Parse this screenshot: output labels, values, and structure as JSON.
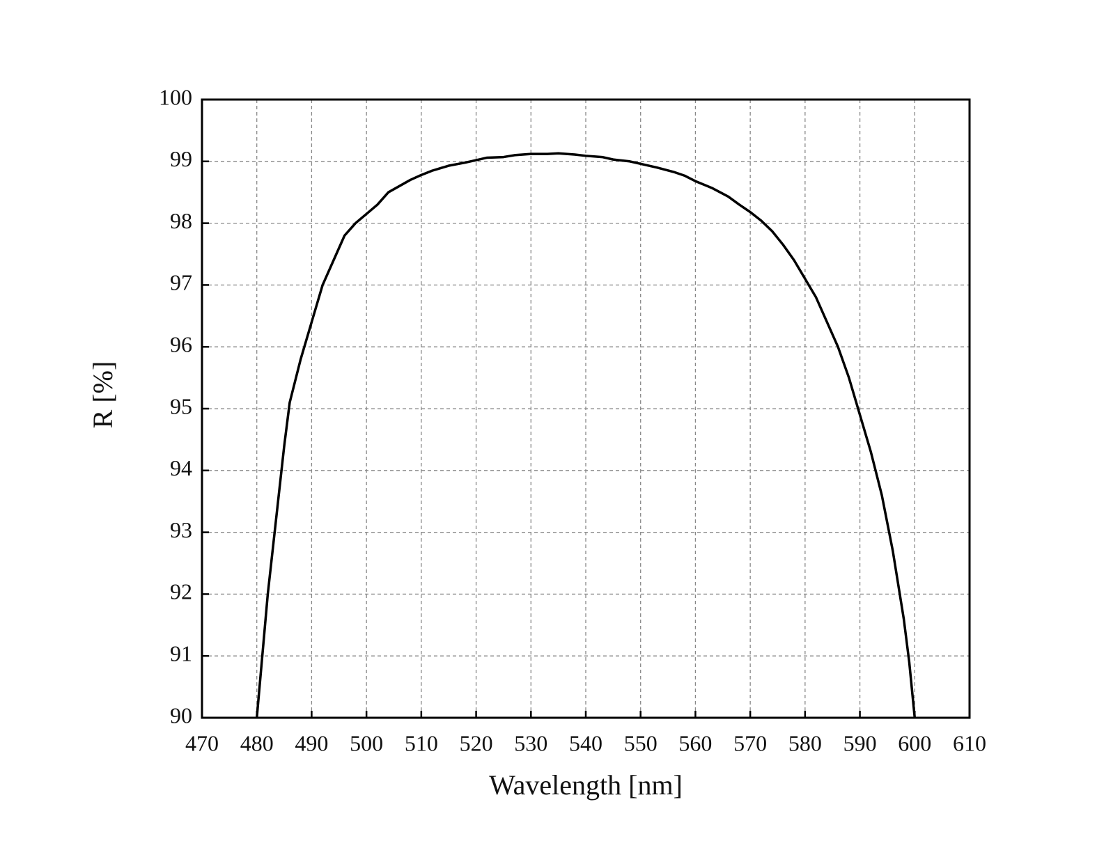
{
  "chart_data": {
    "type": "line",
    "x_label": "Wavelength [nm]",
    "y_label": "R [%]",
    "xlim": [
      470,
      610
    ],
    "xticks": [
      470,
      480,
      490,
      500,
      510,
      520,
      530,
      540,
      550,
      560,
      570,
      580,
      590,
      600,
      610
    ],
    "ylim": [
      90,
      100
    ],
    "yticks": [
      90,
      91,
      92,
      93,
      94,
      95,
      96,
      97,
      98,
      99,
      100
    ],
    "grid": true,
    "series": [
      {
        "color": "#000000",
        "x": [
          480,
          481,
          482,
          483,
          484,
          485,
          486,
          488,
          490,
          492,
          494,
          496,
          498,
          500,
          502,
          504,
          506,
          508,
          510,
          512,
          515,
          518,
          520,
          522,
          525,
          527,
          530,
          533,
          535,
          538,
          540,
          543,
          545,
          548,
          550,
          553,
          556,
          558,
          560,
          563,
          566,
          568,
          570,
          572,
          574,
          576,
          578,
          580,
          582,
          584,
          586,
          588,
          590,
          592,
          594,
          596,
          598,
          599,
          600
        ],
        "values": [
          90,
          91,
          92,
          92.8,
          93.6,
          94.4,
          95.1,
          95.8,
          96.4,
          97.0,
          97.4,
          97.8,
          98.0,
          98.15,
          98.3,
          98.5,
          98.6,
          98.7,
          98.78,
          98.85,
          98.93,
          98.98,
          99.02,
          99.06,
          99.07,
          99.1,
          99.12,
          99.12,
          99.13,
          99.11,
          99.09,
          99.07,
          99.03,
          99.0,
          98.96,
          98.9,
          98.83,
          98.77,
          98.68,
          98.57,
          98.43,
          98.3,
          98.18,
          98.04,
          97.87,
          97.65,
          97.4,
          97.1,
          96.8,
          96.4,
          96.0,
          95.5,
          94.9,
          94.3,
          93.6,
          92.7,
          91.6,
          90.9,
          90
        ]
      }
    ]
  }
}
